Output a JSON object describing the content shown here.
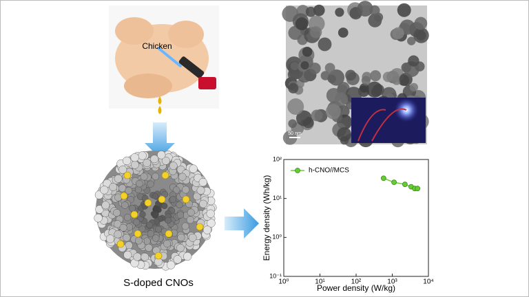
{
  "labels": {
    "chicken": "Chicken",
    "product": "S-doped CNOs",
    "scale_bar": "50 nm"
  },
  "chart_data": {
    "type": "line",
    "x_label": "Power density (W/kg)",
    "y_label": "Energy density (Wh/kg)",
    "log_x": true,
    "log_y": true,
    "xlim": [
      1,
      10000
    ],
    "ylim": [
      0.1,
      100
    ],
    "xticks": [
      {
        "value": 1,
        "label": "10⁰"
      },
      {
        "value": 10,
        "label": "10¹"
      },
      {
        "value": 100,
        "label": "10²"
      },
      {
        "value": 1000,
        "label": "10³"
      },
      {
        "value": 10000,
        "label": "10⁴"
      }
    ],
    "yticks": [
      {
        "value": 0.1,
        "label": "10⁻¹"
      },
      {
        "value": 1,
        "label": "10⁰"
      },
      {
        "value": 10,
        "label": "10¹"
      },
      {
        "value": 100,
        "label": "10²"
      }
    ],
    "legend": "upper left",
    "series": [
      {
        "name": "h-CNO//MCS",
        "color": "#66cc33",
        "x": [
          575,
          1120,
          2240,
          3330,
          4170,
          5000
        ],
        "values": [
          33,
          26,
          23,
          20,
          18,
          18
        ]
      }
    ]
  }
}
